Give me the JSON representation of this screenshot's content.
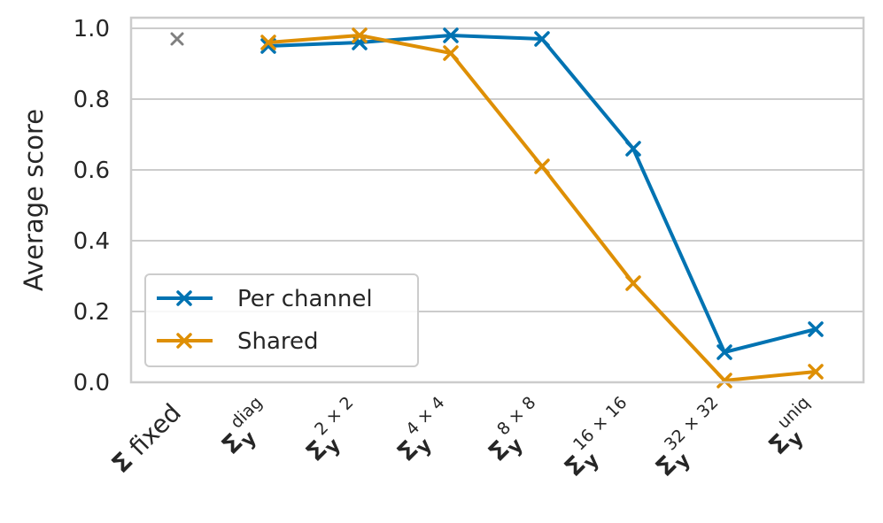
{
  "chart_data": {
    "type": "line",
    "xlabel": "",
    "ylabel": "Average score",
    "ylim": [
      0.0,
      1.0
    ],
    "yticks": [
      "0.0",
      "0.2",
      "0.4",
      "0.6",
      "0.8",
      "1.0"
    ],
    "grid": true,
    "legend_position": "lower-left",
    "categories": [
      {
        "main": "Σ",
        "sub": "",
        "sup": "",
        "suffix": "fixed"
      },
      {
        "main": "Σ",
        "sub": "y",
        "sup": "diag",
        "suffix": ""
      },
      {
        "main": "Σ",
        "sub": "y",
        "sup": "2 × 2",
        "suffix": ""
      },
      {
        "main": "Σ",
        "sub": "y",
        "sup": "4 × 4",
        "suffix": ""
      },
      {
        "main": "Σ",
        "sub": "y",
        "sup": "8 × 8",
        "suffix": ""
      },
      {
        "main": "Σ",
        "sub": "y",
        "sup": "16 × 16",
        "suffix": ""
      },
      {
        "main": "Σ",
        "sub": "y",
        "sup": "32 × 32",
        "suffix": ""
      },
      {
        "main": "Σ",
        "sub": "y",
        "sup": "uniq",
        "suffix": ""
      }
    ],
    "baseline": {
      "category_index": 0,
      "value": 0.97,
      "color": "#808080",
      "marker": "x"
    },
    "series": [
      {
        "name": "Per channel",
        "color": "#0173b2",
        "marker": "x",
        "values": [
          null,
          0.95,
          0.96,
          0.98,
          0.97,
          0.66,
          0.085,
          0.15
        ]
      },
      {
        "name": "Shared",
        "color": "#de8f05",
        "marker": "x",
        "values": [
          null,
          0.96,
          0.98,
          0.93,
          0.61,
          0.28,
          0.005,
          0.03
        ]
      }
    ]
  }
}
